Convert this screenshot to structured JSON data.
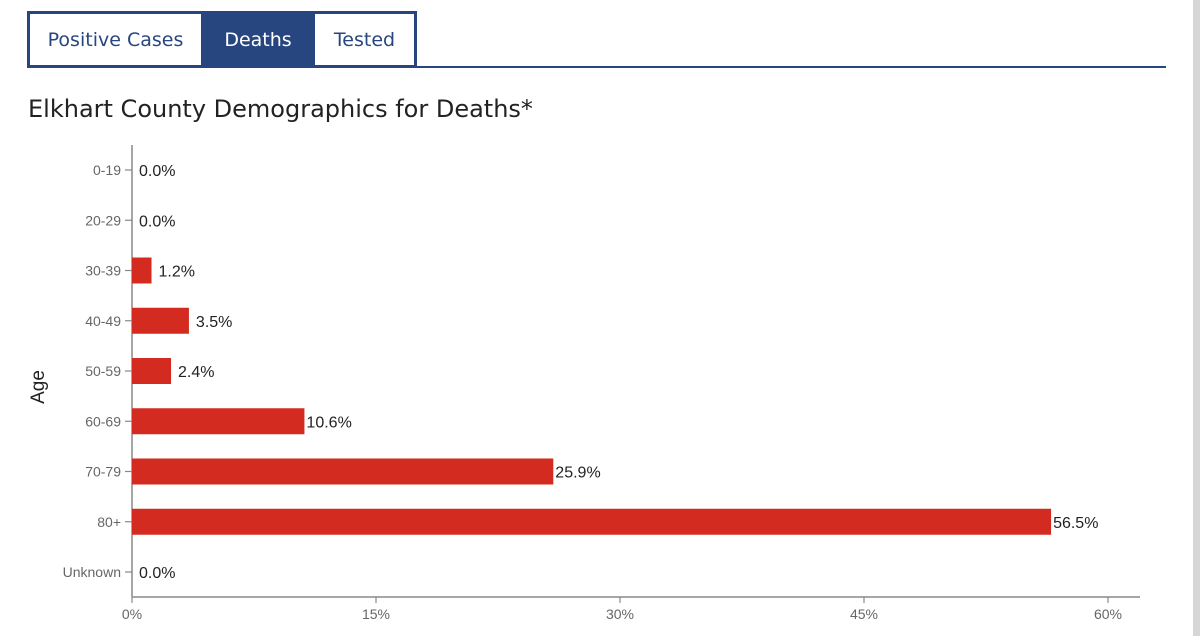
{
  "tabs": [
    {
      "label": "Positive Cases",
      "active": false
    },
    {
      "label": "Deaths",
      "active": true
    },
    {
      "label": "Tested",
      "active": false
    }
  ],
  "title": "Elkhart County Demographics for Deaths*",
  "colors": {
    "accent": "#27467f",
    "bar": "#d42b20"
  },
  "chart_data": {
    "type": "bar",
    "orientation": "horizontal",
    "categories": [
      "0-19",
      "20-29",
      "30-39",
      "40-49",
      "50-59",
      "60-69",
      "70-79",
      "80+",
      "Unknown"
    ],
    "values": [
      0.0,
      0.0,
      1.2,
      3.5,
      2.4,
      10.6,
      25.9,
      56.5,
      0.0
    ],
    "value_labels": [
      "0.0%",
      "0.0%",
      "1.2%",
      "3.5%",
      "2.4%",
      "10.6%",
      "25.9%",
      "56.5%",
      "0.0%"
    ],
    "xlabel": "",
    "ylabel": "Age",
    "xlim": [
      0,
      60
    ],
    "xticks": [
      0,
      15,
      30,
      45,
      60
    ],
    "xtick_labels": [
      "0%",
      "15%",
      "30%",
      "45%",
      "60%"
    ],
    "grid": false,
    "legend": "none"
  }
}
